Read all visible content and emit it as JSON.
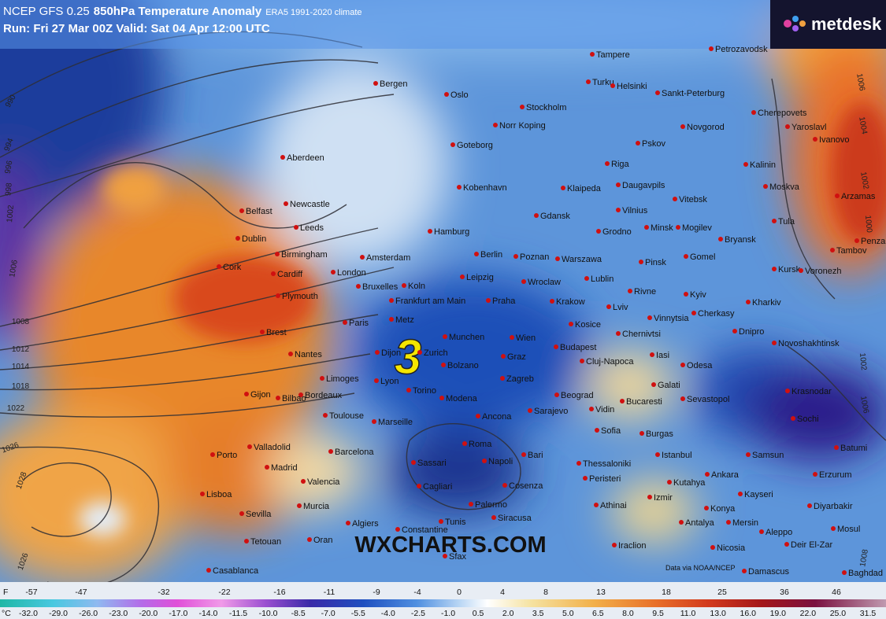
{
  "header": {
    "model": "NCEP GFS 0.25",
    "field": "850hPa Temperature Anomaly",
    "climate": "ERA5 1991-2020 climate",
    "run": "Run: Fri 27 Mar 00Z Valid: Sat 04 Apr 12:00 UTC"
  },
  "logo": "metdesk",
  "watermark": "WXCHARTS.COM",
  "marker": "3",
  "credit": "Data via NOAA/NCEP",
  "cities": [
    "Tampere",
    "Petrozavodsk",
    "Bergen",
    "Oslo",
    "Turku",
    "Helsinki",
    "Sankt-Peterburg",
    "Stockholm",
    "Norr Koping",
    "Cherepovets",
    "Novgorod",
    "Goteborg",
    "Pskov",
    "Yaroslavl",
    "Ivanovo",
    "Aberdeen",
    "Riga",
    "Kalinin",
    "Kobenhavn",
    "Klaipeda",
    "Daugavpils",
    "Moskva",
    "Arzamas",
    "Belfast",
    "Newcastle",
    "Vitebsk",
    "Vilnius",
    "Gdansk",
    "Tula",
    "Leeds",
    "Hamburg",
    "Grodno",
    "Minsk",
    "Mogilev",
    "Dublin",
    "Bryansk",
    "Birmingham",
    "Amsterdam",
    "Berlin",
    "Poznan",
    "Warszawa",
    "Pinsk",
    "Gomel",
    "Tambov",
    "Penza",
    "Cork",
    "Cardiff",
    "London",
    "Kursk",
    "Voronezh",
    "Koln",
    "Bruxelles",
    "Leipzig",
    "Wroclaw",
    "Lublin",
    "Plymouth",
    "Frankfurt am Main",
    "Praha",
    "Krakow",
    "Rivne",
    "Kyiv",
    "Kharkiv",
    "Lviv",
    "Paris",
    "Metz",
    "Vinnytsia",
    "Cherkasy",
    "Kosice",
    "Brest",
    "Munchen",
    "Wien",
    "Budapest",
    "Chernivtsi",
    "Dnipro",
    "Novoshakhtinsk",
    "Nantes",
    "Dijon",
    "Zurich",
    "Graz",
    "Cluj-Napoca",
    "Iasi",
    "Odesa",
    "Bolzano",
    "Zagreb",
    "Limoges",
    "Lyon",
    "Galati",
    "Krasnodar",
    "Bordeaux",
    "Torino",
    "Beograd",
    "Sevastopol",
    "Gijon",
    "Bilbao",
    "Modena",
    "Vidin",
    "Bucaresti",
    "Sochi",
    "Toulouse",
    "Ancona",
    "Sarajevo",
    "Marseille",
    "Sofia",
    "Burgas",
    "Batumi",
    "Valladolid",
    "Barcelona",
    "Roma",
    "Bari",
    "Istanbul",
    "Samsun",
    "Porto",
    "Madrid",
    "Napoli",
    "Sassari",
    "Thessaloniki",
    "Erzurum",
    "Ankara",
    "Kayseri",
    "Valencia",
    "Lisboa",
    "Murcia",
    "Cagliari",
    "Cosenza",
    "Peristeri",
    "Kutahya",
    "Izmir",
    "Athinai",
    "Konya",
    "Diyarbakir",
    "Sevilla",
    "Palermo",
    "Siracusa",
    "Antalya",
    "Mersin",
    "Mosul",
    "Algiers",
    "Constantine",
    "Tunis",
    "Oran",
    "Tetouan",
    "Aleppo",
    "Iraclion",
    "Nicosia",
    "Deir El-Zar",
    "Casablanca",
    "Sfax",
    "Damascus",
    "Baghdad"
  ],
  "isobars": [
    "990",
    "994",
    "996",
    "998",
    "1002",
    "1006",
    "1008",
    "1012",
    "1014",
    "1018",
    "1022",
    "1026",
    "1028",
    "1026",
    "1006",
    "1004",
    "1002",
    "1000",
    "1002",
    "1006",
    "1008"
  ],
  "legend": {
    "f_unit": "F",
    "f_labels": [
      "-57",
      "-47",
      "-32",
      "-22",
      "-16",
      "-11",
      "-9",
      "-4",
      "0",
      "4",
      "8",
      "13",
      "18",
      "25",
      "36",
      "46"
    ],
    "c_unit": "°C",
    "c_labels": [
      "-32.0",
      "-29.0",
      "-26.0",
      "-23.0",
      "-20.0",
      "-17.0",
      "-14.0",
      "-11.5",
      "-10.0",
      "-8.5",
      "-7.0",
      "-5.5",
      "-4.0",
      "-2.5",
      "-1.0",
      "0.5",
      "2.0",
      "3.5",
      "5.0",
      "6.5",
      "8.0",
      "9.5",
      "11.0",
      "13.0",
      "16.0",
      "19.0",
      "22.0",
      "25.0",
      "31.5"
    ]
  }
}
